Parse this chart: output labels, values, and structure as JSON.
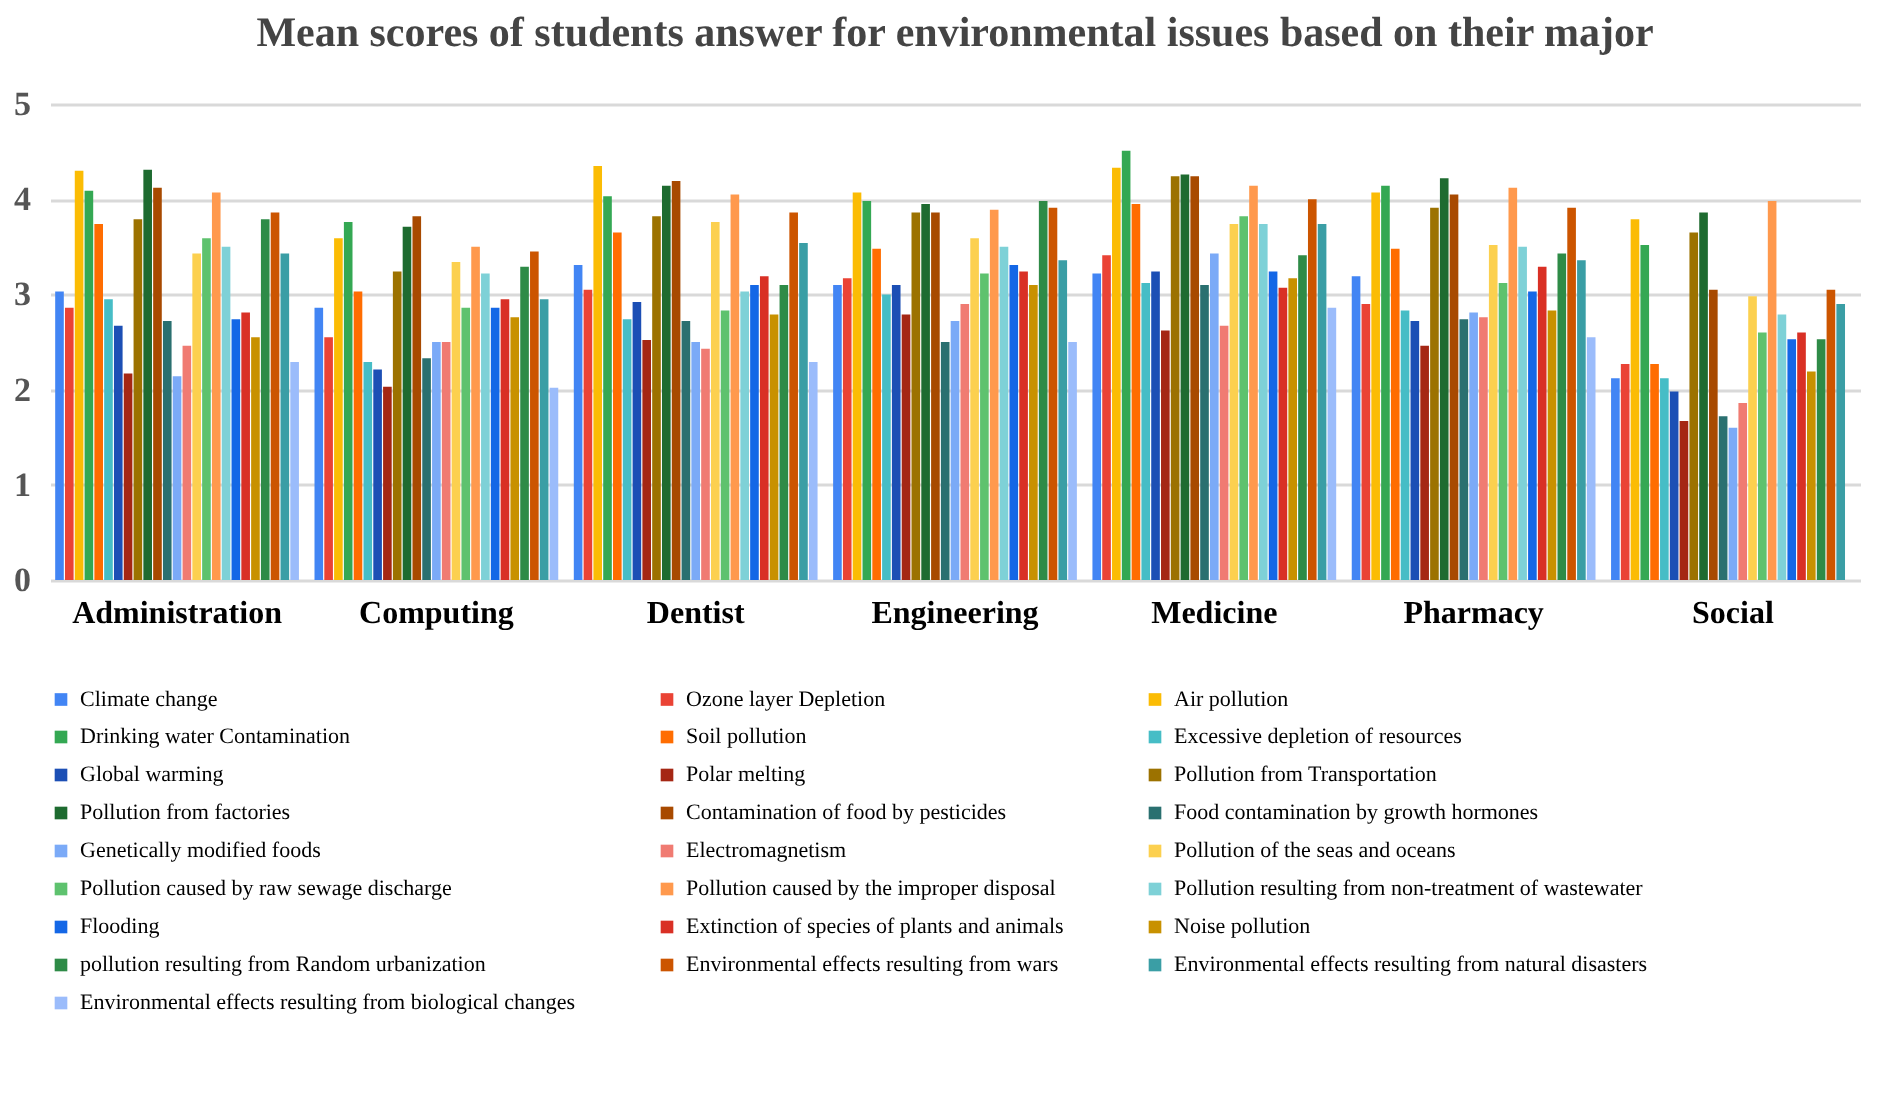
{
  "chart_data": {
    "type": "bar",
    "title": "Mean scores of students answer for environmental issues based on their major",
    "categories": [
      "Administration",
      "Computing",
      "Dentist",
      "Engineering",
      "Medicine",
      "Pharmacy",
      "Social"
    ],
    "ylim": [
      0,
      5
    ],
    "yticks": [
      0,
      1,
      2,
      3,
      4,
      5
    ],
    "grid": "y",
    "legend": "bottom",
    "series": [
      {
        "name": "Climate change",
        "color": "#4285f4",
        "values": [
          3.03,
          2.86,
          3.31,
          3.1,
          3.22,
          3.19,
          2.12
        ]
      },
      {
        "name": "Ozone layer Depletion",
        "color": "#ea4335",
        "values": [
          2.86,
          2.55,
          3.05,
          3.17,
          3.41,
          2.9,
          2.27
        ]
      },
      {
        "name": "Air pollution",
        "color": "#fbbc04",
        "values": [
          4.3,
          3.59,
          4.35,
          4.07,
          4.33,
          4.07,
          3.79
        ]
      },
      {
        "name": "Drinking water Contamination",
        "color": "#34a853",
        "values": [
          4.09,
          3.76,
          4.03,
          3.98,
          4.51,
          4.14,
          3.52
        ]
      },
      {
        "name": "Soil pollution",
        "color": "#ff6d01",
        "values": [
          3.74,
          3.03,
          3.65,
          3.48,
          3.95,
          3.48,
          2.27
        ]
      },
      {
        "name": "Excessive depletion of resources",
        "color": "#46bdc6",
        "values": [
          2.95,
          2.29,
          2.74,
          3.0,
          3.12,
          2.83,
          2.12
        ]
      },
      {
        "name": "Global warming",
        "color": "#1c4fb5",
        "values": [
          2.67,
          2.21,
          2.92,
          3.1,
          3.24,
          2.72,
          1.98
        ]
      },
      {
        "name": "Polar melting",
        "color": "#a52714",
        "values": [
          2.17,
          2.03,
          2.52,
          2.79,
          2.62,
          2.46,
          1.67
        ]
      },
      {
        "name": "Pollution from Transportation",
        "color": "#9c7200",
        "values": [
          3.79,
          3.24,
          3.82,
          3.86,
          4.24,
          3.91,
          3.65
        ]
      },
      {
        "name": "Pollution from factories",
        "color": "#1e6b30",
        "values": [
          4.31,
          3.71,
          4.14,
          3.95,
          4.26,
          4.22,
          3.86
        ]
      },
      {
        "name": "Contamination of food by pesticides",
        "color": "#a84a00",
        "values": [
          4.12,
          3.82,
          4.19,
          3.86,
          4.24,
          4.05,
          3.05
        ]
      },
      {
        "name": "Food contamination by growth hormones",
        "color": "#2a7070",
        "values": [
          2.72,
          2.33,
          2.72,
          2.5,
          3.1,
          2.74,
          1.72
        ]
      },
      {
        "name": "Genetically modified foods",
        "color": "#7baaf7",
        "values": [
          2.14,
          2.5,
          2.5,
          2.72,
          3.43,
          2.81,
          1.6
        ]
      },
      {
        "name": "Electromagnetism",
        "color": "#f07b72",
        "values": [
          2.46,
          2.5,
          2.43,
          2.9,
          2.67,
          2.76,
          1.86
        ]
      },
      {
        "name": "Pollution of the seas and oceans",
        "color": "#fcd04f",
        "values": [
          3.43,
          3.34,
          3.76,
          3.59,
          3.74,
          3.52,
          2.98
        ]
      },
      {
        "name": "Pollution caused by raw sewage discharge",
        "color": "#5ec26e",
        "values": [
          3.59,
          2.86,
          2.83,
          3.22,
          3.82,
          3.12,
          2.6
        ]
      },
      {
        "name": "Pollution caused by the improper disposal",
        "color": "#ff994d",
        "values": [
          4.07,
          3.5,
          4.05,
          3.89,
          4.14,
          4.12,
          3.98
        ]
      },
      {
        "name": "Pollution resulting from non-treatment of wastewater",
        "color": "#7ed1d7",
        "values": [
          3.5,
          3.22,
          3.03,
          3.5,
          3.74,
          3.5,
          2.79
        ]
      },
      {
        "name": "Flooding",
        "color": "#1467e6",
        "values": [
          2.74,
          2.86,
          3.1,
          3.31,
          3.24,
          3.03,
          2.53
        ]
      },
      {
        "name": "Extinction of species of plants and animals",
        "color": "#d93025",
        "values": [
          2.81,
          2.95,
          3.19,
          3.24,
          3.07,
          3.29,
          2.6
        ]
      },
      {
        "name": "Noise pollution",
        "color": "#c89100",
        "values": [
          2.55,
          2.76,
          2.79,
          3.1,
          3.17,
          2.83,
          2.19
        ]
      },
      {
        "name": "pollution resulting from Random urbanization",
        "color": "#2e8b47",
        "values": [
          3.79,
          3.29,
          3.1,
          3.98,
          3.41,
          3.43,
          2.53
        ]
      },
      {
        "name": "Environmental effects resulting from wars",
        "color": "#cc5500",
        "values": [
          3.86,
          3.45,
          3.86,
          3.91,
          4.0,
          3.91,
          3.05
        ]
      },
      {
        "name": "Environmental effects resulting from natural disasters",
        "color": "#3a9ea5",
        "values": [
          3.43,
          2.95,
          3.54,
          3.36,
          3.74,
          3.36,
          2.9
        ]
      },
      {
        "name": "Environmental effects resulting from biological changes",
        "color": "#9bbcfb",
        "values": [
          2.29,
          2.02,
          2.29,
          2.5,
          2.86,
          2.55,
          null
        ]
      }
    ]
  }
}
